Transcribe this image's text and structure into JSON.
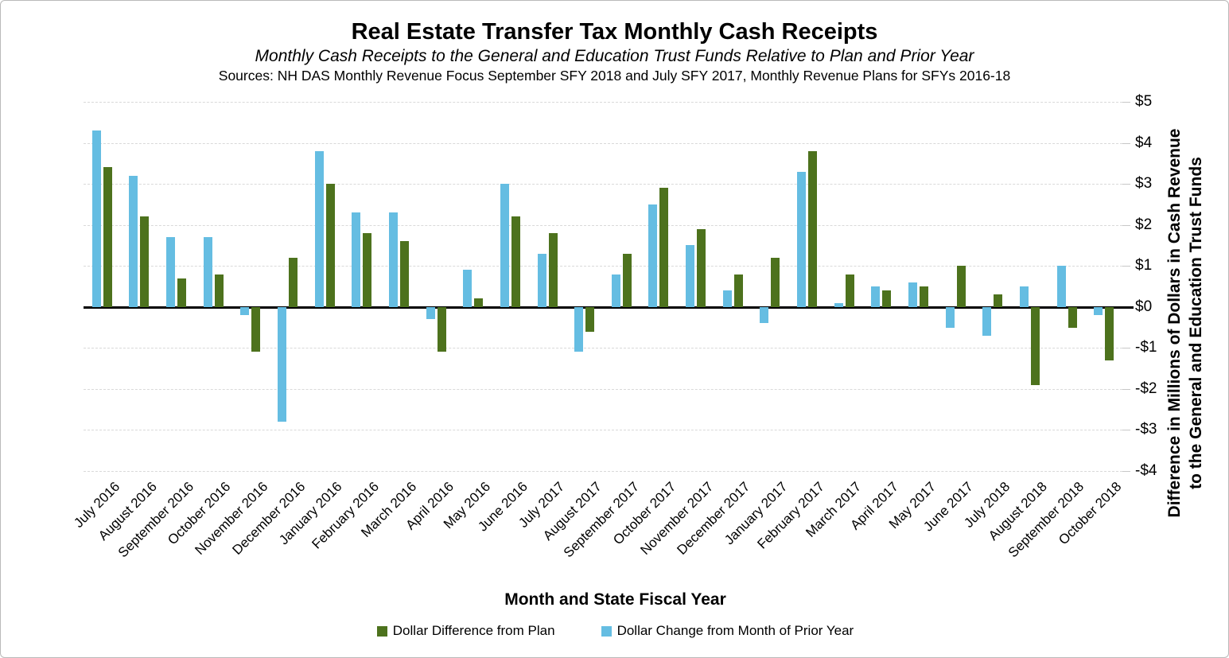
{
  "header": {
    "title": "Real Estate Transfer Tax Monthly Cash Receipts",
    "subtitle": "Monthly Cash Receipts to the General and Education Trust Funds Relative to Plan and Prior Year",
    "sources": "Sources: NH DAS Monthly Revenue Focus September SFY 2018 and July SFY 2017, Monthly Revenue Plans for SFYs 2016-18"
  },
  "chart_data": {
    "type": "bar",
    "title": "Real Estate Transfer Tax Monthly Cash Receipts",
    "xlabel": "Month and State Fiscal Year",
    "ylabel_line1": "Difference in Millions of Dollars in Cash Revenue",
    "ylabel_line2": "to the General and Education Trust Funds",
    "ylim": [
      -4,
      5
    ],
    "grid": true,
    "legend_position": "bottom",
    "units": "millions of dollars",
    "yticks": [
      {
        "value": 5,
        "label": "$5"
      },
      {
        "value": 4,
        "label": "$4"
      },
      {
        "value": 3,
        "label": "$3"
      },
      {
        "value": 2,
        "label": "$2"
      },
      {
        "value": 1,
        "label": "$1"
      },
      {
        "value": 0,
        "label": "$0"
      },
      {
        "value": -1,
        "label": "-$1"
      },
      {
        "value": -2,
        "label": "-$2"
      },
      {
        "value": -3,
        "label": "-$3"
      },
      {
        "value": -4,
        "label": "-$4"
      }
    ],
    "categories": [
      "July 2016",
      "August 2016",
      "September 2016",
      "October 2016",
      "November 2016",
      "December 2016",
      "January 2016",
      "February 2016",
      "March 2016",
      "April 2016",
      "May 2016",
      "June 2016",
      "July 2017",
      "August 2017",
      "September 2017",
      "October 2017",
      "November 2017",
      "December 2017",
      "January 2017",
      "February 2017",
      "March 2017",
      "April 2017",
      "May 2017",
      "June 2017",
      "July 2018",
      "August 2018",
      "September 2018",
      "October 2018"
    ],
    "series": [
      {
        "name": "Dollar Difference from Plan",
        "color": "#4D721D",
        "values": [
          3.4,
          2.2,
          0.7,
          0.8,
          -1.1,
          1.2,
          3.0,
          1.8,
          1.6,
          -1.1,
          0.2,
          2.2,
          1.8,
          -0.6,
          1.3,
          2.9,
          1.9,
          0.8,
          1.2,
          3.8,
          0.8,
          0.4,
          0.5,
          1.0,
          0.3,
          -1.9,
          -0.5,
          -1.3
        ]
      },
      {
        "name": "Dollar Change from Month of Prior Year",
        "color": "#65BDE2",
        "values": [
          4.3,
          3.2,
          1.7,
          1.7,
          -0.2,
          -2.8,
          3.8,
          2.3,
          2.3,
          -0.3,
          0.9,
          3.0,
          1.3,
          -1.1,
          0.8,
          2.5,
          1.5,
          0.4,
          -0.4,
          3.3,
          0.1,
          0.5,
          0.6,
          -0.5,
          -0.7,
          0.5,
          1.0,
          -0.2
        ]
      }
    ]
  }
}
